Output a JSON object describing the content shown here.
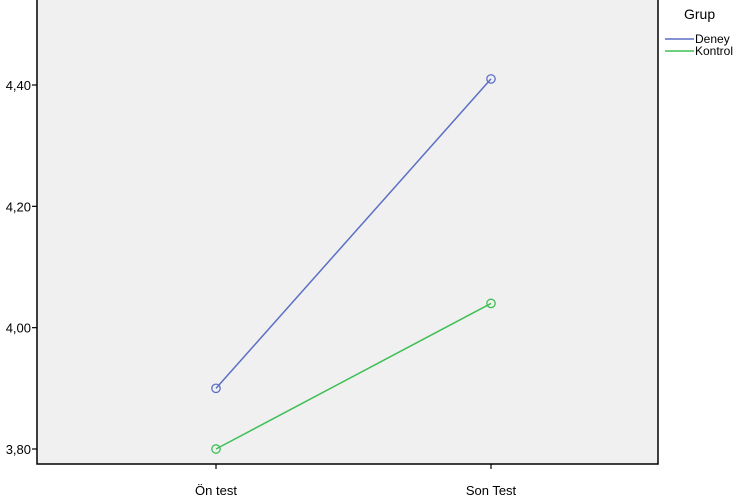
{
  "chart_data": {
    "type": "line",
    "categories": [
      "Ön test",
      "Son Test"
    ],
    "series": [
      {
        "name": "Deney",
        "values": [
          3.9,
          4.41
        ],
        "color": "#5b6fc5"
      },
      {
        "name": "Kontrol",
        "values": [
          3.8,
          4.04
        ],
        "color": "#3fbf55"
      }
    ],
    "ylim": [
      3.78,
      4.52
    ],
    "y_ticks": [
      "4,40",
      "4,20",
      "4,00",
      "3,80"
    ],
    "y_tick_values": [
      4.4,
      4.2,
      4.0,
      3.8
    ],
    "marker": "open-circle",
    "plot_background": "#f0f0f0",
    "grid": false,
    "legend": {
      "title": "Grup",
      "placement": "top-right-outside"
    }
  }
}
